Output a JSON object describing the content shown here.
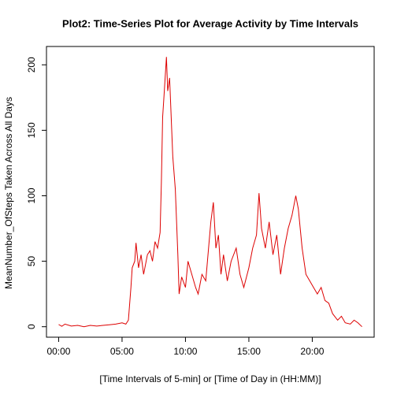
{
  "chart_data": {
    "type": "line",
    "title": "Plot2: Time-Series Plot for Average Activity by Time Intervals",
    "x_label": "[Time Intervals of 5-min] or [Time of Day in (HH:MM)]",
    "y_label": "MeanNumber_OfSteps Taken Across All Days",
    "x": [
      0,
      0.25,
      0.5,
      1,
      1.5,
      2,
      2.5,
      3,
      3.5,
      4,
      4.5,
      5,
      5.3,
      5.5,
      5.7,
      5.8,
      6.0,
      6.1,
      6.3,
      6.5,
      6.7,
      7.0,
      7.2,
      7.4,
      7.6,
      7.8,
      8.0,
      8.1,
      8.2,
      8.3,
      8.5,
      8.6,
      8.75,
      9.0,
      9.2,
      9.4,
      9.5,
      9.7,
      10,
      10.2,
      10.5,
      10.8,
      11,
      11.3,
      11.6,
      12,
      12.2,
      12.4,
      12.6,
      12.8,
      13,
      13.3,
      13.6,
      14,
      14.3,
      14.6,
      15,
      15.3,
      15.6,
      15.8,
      16.0,
      16.3,
      16.6,
      16.9,
      17.2,
      17.5,
      17.8,
      18.1,
      18.4,
      18.7,
      18.9,
      19.2,
      19.5,
      19.8,
      20.1,
      20.4,
      20.7,
      21,
      21.3,
      21.6,
      22,
      22.3,
      22.6,
      23,
      23.3,
      23.6,
      23.92
    ],
    "series": [
      {
        "name": "steps",
        "color": "#dd0000",
        "values": [
          1.7,
          0.3,
          2,
          0.5,
          1,
          0,
          1,
          0.5,
          1,
          1.5,
          2,
          3,
          2,
          5,
          30,
          45,
          50,
          64,
          45,
          55,
          40,
          55,
          58,
          50,
          65,
          60,
          72,
          110,
          160,
          175,
          206,
          180,
          190,
          130,
          105,
          55,
          25,
          38,
          30,
          50,
          40,
          30,
          25,
          40,
          35,
          80,
          95,
          60,
          70,
          40,
          55,
          35,
          50,
          60,
          40,
          30,
          45,
          60,
          70,
          102,
          75,
          60,
          80,
          55,
          70,
          40,
          60,
          75,
          85,
          100,
          90,
          60,
          40,
          35,
          30,
          25,
          30,
          20,
          18,
          10,
          5,
          8,
          3,
          2,
          5,
          3,
          0
        ]
      }
    ],
    "xlim": [
      -0.96,
      24.88
    ],
    "ylim": [
      -8,
      214
    ],
    "xticks": [
      {
        "value": 0,
        "label": "00:00"
      },
      {
        "value": 5,
        "label": "05:00"
      },
      {
        "value": 10,
        "label": "10:00"
      },
      {
        "value": 15,
        "label": "15:00"
      },
      {
        "value": 20,
        "label": "20:00"
      }
    ],
    "yticks": [
      0,
      50,
      100,
      150,
      200
    ]
  }
}
